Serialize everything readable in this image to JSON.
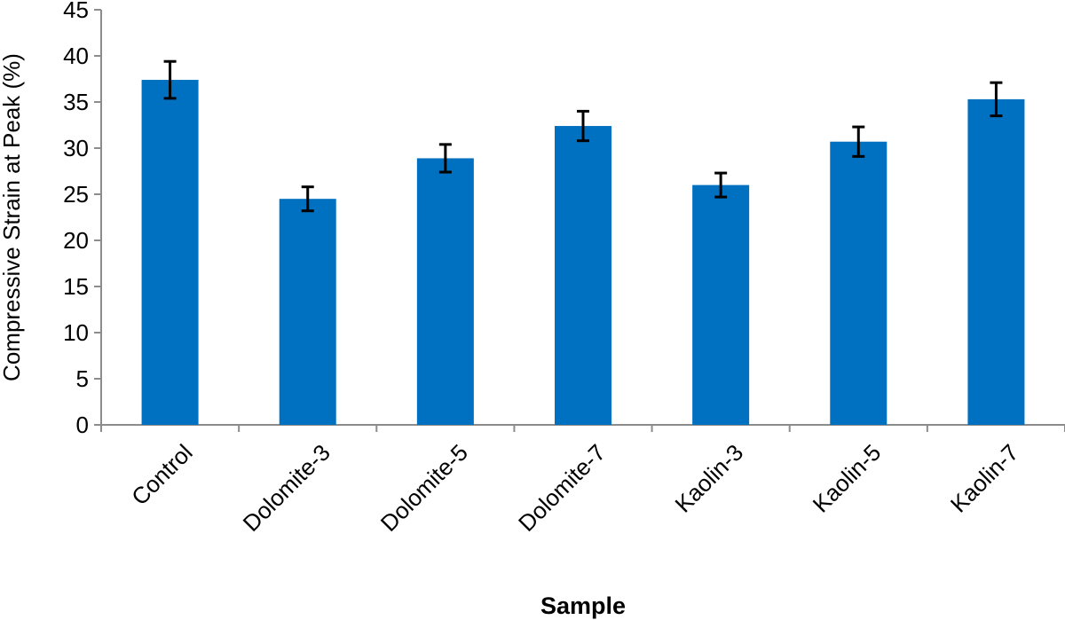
{
  "chart_data": {
    "type": "bar",
    "title": "",
    "xlabel": "Sample",
    "ylabel": "Compressive Strain at Peak (%)",
    "ylim": [
      0,
      45
    ],
    "yticks": [
      0,
      5,
      10,
      15,
      20,
      25,
      30,
      35,
      40,
      45
    ],
    "grid": false,
    "legend": "none",
    "categories": [
      "Control",
      "Dolomite-3",
      "Dolomite-5",
      "Dolomite-7",
      "Kaolin-3",
      "Kaolin-5",
      "Kaolin-7"
    ],
    "series": [
      {
        "values": [
          37.4,
          24.5,
          28.9,
          32.4,
          26.0,
          30.7,
          35.3
        ],
        "error": [
          2.0,
          1.3,
          1.5,
          1.6,
          1.3,
          1.6,
          1.8
        ],
        "color": "#0070C0"
      }
    ]
  }
}
